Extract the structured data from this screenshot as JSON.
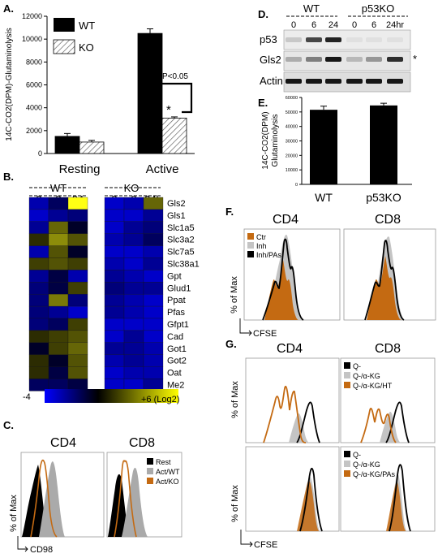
{
  "panels": {
    "A": {
      "label": "A.",
      "ylabel": "14C-CO2(DPM)-Glutaminolysis",
      "yticks": [
        "0",
        "2000",
        "4000",
        "6000",
        "8000",
        "10000",
        "12000"
      ],
      "legend": [
        "WT",
        "KO"
      ],
      "categories": [
        "Resting",
        "Active"
      ],
      "annotation": "P<0.05",
      "star": "*"
    },
    "B": {
      "label": "B.",
      "group_wt": "WT",
      "group_ko": "KO",
      "times_wt": [
        "3",
        "8",
        "24"
      ],
      "times_ko": [
        "3",
        "8",
        "24h"
      ],
      "genes": [
        "Gls2",
        "Gls1",
        "Slc1a5",
        "Slc3a2",
        "Slc7a5",
        "Slc38a1",
        "Gpt",
        "Glud1",
        "Ppat",
        "Pfas",
        "Gfpt1",
        "Cad",
        "Got1",
        "Got2",
        "Oat",
        "Me2"
      ],
      "scale_min": "-4",
      "scale_max": "+6 (Log2)"
    },
    "C": {
      "label": "C.",
      "titles": [
        "CD4",
        "CD8"
      ],
      "legend": [
        "Rest",
        "Act/WT",
        "Act/KO"
      ],
      "ylabel": "% of Max",
      "xlabel": "CD98"
    },
    "D": {
      "label": "D.",
      "groups": [
        "WT",
        "p53KO"
      ],
      "times": [
        "0",
        "6",
        "24",
        "0",
        "6",
        "24hr"
      ],
      "rows": [
        "p53",
        "Gls2",
        "Actin"
      ],
      "star": "*"
    },
    "E": {
      "label": "E.",
      "ylabel_line1": "14C-CO2(DPM)",
      "ylabel_line2": "Glutaminolysis",
      "yticks": [
        "0",
        "10000",
        "20000",
        "30000",
        "40000",
        "50000",
        "60000"
      ],
      "categories": [
        "WT",
        "p53KO"
      ]
    },
    "F": {
      "label": "F.",
      "titles": [
        "CD4",
        "CD8"
      ],
      "legend": [
        "Ctr",
        "Inh",
        "Inh/PAs"
      ],
      "ylabel": "% of Max",
      "xlabel": "CFSE"
    },
    "G": {
      "label": "G.",
      "titles": [
        "CD4",
        "CD8"
      ],
      "legend_top": [
        "Q-",
        "Q-/α-KG",
        "Q-/α-KG/HT"
      ],
      "legend_bottom": [
        "Q-",
        "Q-/α-KG",
        "Q-/α-KG/PAs"
      ],
      "ylabel": "% of Max",
      "xlabel": "CFSE"
    }
  },
  "colors": {
    "orange": "#c46a12",
    "gray": "#b0b0b0",
    "black": "#000000"
  },
  "chart_data": [
    {
      "type": "bar",
      "panel": "A",
      "categories": [
        "Resting",
        "Active"
      ],
      "series": [
        {
          "name": "WT",
          "values": [
            1500,
            10500
          ]
        },
        {
          "name": "KO",
          "values": [
            1000,
            3100
          ]
        }
      ],
      "errors": [
        [
          250,
          400
        ],
        [
          150,
          100
        ]
      ],
      "ylim": [
        0,
        12000
      ]
    },
    {
      "type": "heatmap",
      "panel": "B",
      "rows": [
        "Gls2",
        "Gls1",
        "Slc1a5",
        "Slc3a2",
        "Slc7a5",
        "Slc38a1",
        "Gpt",
        "Glud1",
        "Ppat",
        "Pfas",
        "Gfpt1",
        "Cad",
        "Got1",
        "Got2",
        "Oat",
        "Me2"
      ],
      "columns": [
        "WT 3",
        "WT 8",
        "WT 24",
        "KO 3",
        "KO 8",
        "KO 24h"
      ],
      "values": [
        [
          -2.5,
          -1,
          6,
          -3,
          -2.5,
          2
        ],
        [
          -3,
          -2,
          -1.5,
          -3,
          -3,
          -2
        ],
        [
          -2,
          2,
          0,
          -3,
          -2,
          -1.5
        ],
        [
          0.5,
          3,
          1.5,
          -2.5,
          -2,
          -1
        ],
        [
          -2.5,
          1.5,
          0,
          -3,
          -3,
          -2.5
        ],
        [
          1,
          1.5,
          1,
          -2.5,
          -3,
          -2
        ],
        [
          -2,
          -0.5,
          -2.5,
          -2,
          -2.5,
          -3
        ],
        [
          -1.5,
          -0.5,
          1,
          -1.5,
          -2,
          -2
        ],
        [
          -1.5,
          2.5,
          -1.5,
          -2,
          -2.5,
          -3
        ],
        [
          -1.5,
          -2,
          -3,
          -2,
          -2.5,
          -3
        ],
        [
          -1.5,
          -1,
          1,
          -3,
          -3,
          -3
        ],
        [
          0.5,
          1,
          1.5,
          -3,
          -2,
          -3
        ],
        [
          0,
          1,
          2,
          -2,
          -2,
          -2.5
        ],
        [
          0.5,
          0,
          1.5,
          -2.5,
          -2,
          -2.5
        ],
        [
          0.5,
          -0.5,
          1.5,
          -3,
          -2.5,
          -2.5
        ],
        [
          -1,
          -1,
          -0.5,
          -3,
          -3,
          -2
        ]
      ],
      "scale": [
        -4,
        6
      ]
    },
    {
      "type": "bar",
      "panel": "E",
      "categories": [
        "WT",
        "p53KO"
      ],
      "values": [
        51500,
        54500
      ],
      "errors": [
        2500,
        1500
      ],
      "ylim": [
        0,
        60000
      ]
    }
  ]
}
